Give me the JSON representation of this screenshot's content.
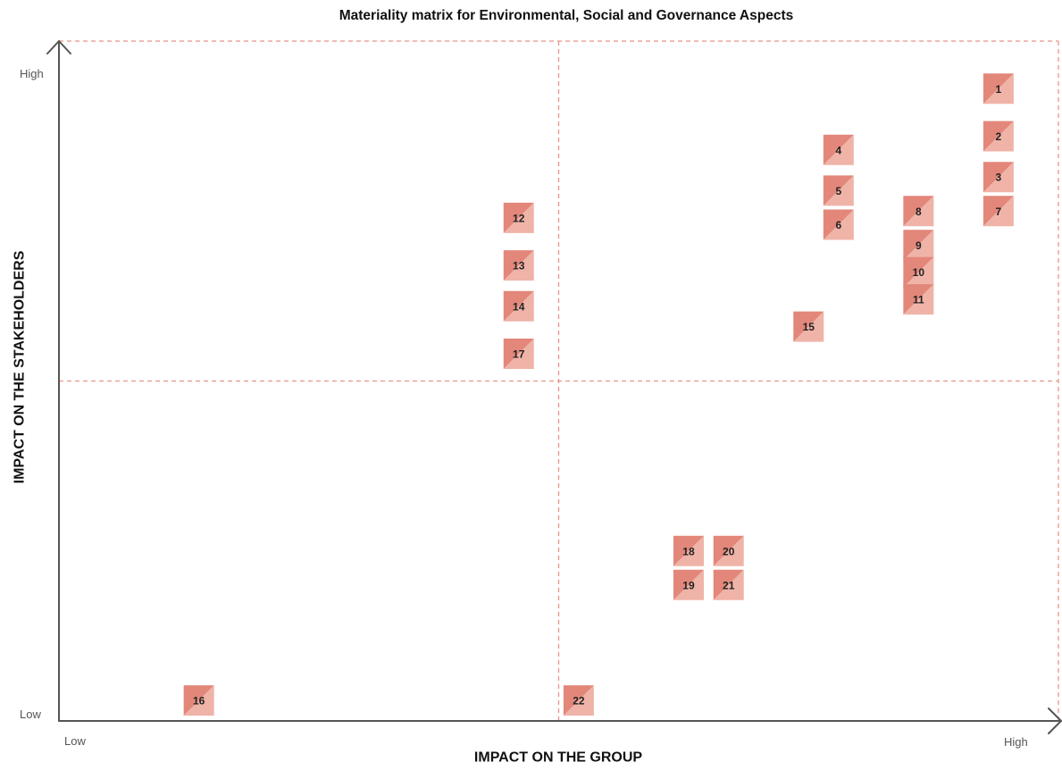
{
  "chart_data": {
    "type": "scatter",
    "title": "Materiality matrix for Environmental, Social and Governance Aspects",
    "xlabel": "IMPACT ON THE GROUP",
    "ylabel": "IMPACT ON THE STAKEHOLDERS",
    "x_ticks": {
      "low": "Low",
      "high": "High"
    },
    "y_ticks": {
      "low": "Low",
      "high": "High"
    },
    "xlim": [
      0,
      1
    ],
    "ylim": [
      0,
      1
    ],
    "quadrant_divider": {
      "x": 0.5,
      "y": 0.5
    },
    "grid": false,
    "points": [
      {
        "label": "1",
        "x": 0.94,
        "y": 0.93
      },
      {
        "label": "2",
        "x": 0.94,
        "y": 0.86
      },
      {
        "label": "3",
        "x": 0.94,
        "y": 0.8
      },
      {
        "label": "4",
        "x": 0.78,
        "y": 0.84
      },
      {
        "label": "5",
        "x": 0.78,
        "y": 0.78
      },
      {
        "label": "6",
        "x": 0.78,
        "y": 0.73
      },
      {
        "label": "7",
        "x": 0.94,
        "y": 0.75
      },
      {
        "label": "8",
        "x": 0.86,
        "y": 0.75
      },
      {
        "label": "9",
        "x": 0.86,
        "y": 0.7
      },
      {
        "label": "10",
        "x": 0.86,
        "y": 0.66
      },
      {
        "label": "11",
        "x": 0.86,
        "y": 0.62
      },
      {
        "label": "12",
        "x": 0.46,
        "y": 0.74
      },
      {
        "label": "13",
        "x": 0.46,
        "y": 0.67
      },
      {
        "label": "14",
        "x": 0.46,
        "y": 0.61
      },
      {
        "label": "15",
        "x": 0.75,
        "y": 0.58
      },
      {
        "label": "16",
        "x": 0.14,
        "y": 0.03
      },
      {
        "label": "17",
        "x": 0.46,
        "y": 0.54
      },
      {
        "label": "18",
        "x": 0.63,
        "y": 0.25
      },
      {
        "label": "19",
        "x": 0.63,
        "y": 0.2
      },
      {
        "label": "20",
        "x": 0.67,
        "y": 0.25
      },
      {
        "label": "21",
        "x": 0.67,
        "y": 0.2
      },
      {
        "label": "22",
        "x": 0.52,
        "y": 0.03
      }
    ],
    "colors": {
      "marker_dark": "#e2877a",
      "marker_light": "#f0b3a8",
      "dashed_lines": "#e8958a",
      "axis": "#555555"
    }
  }
}
